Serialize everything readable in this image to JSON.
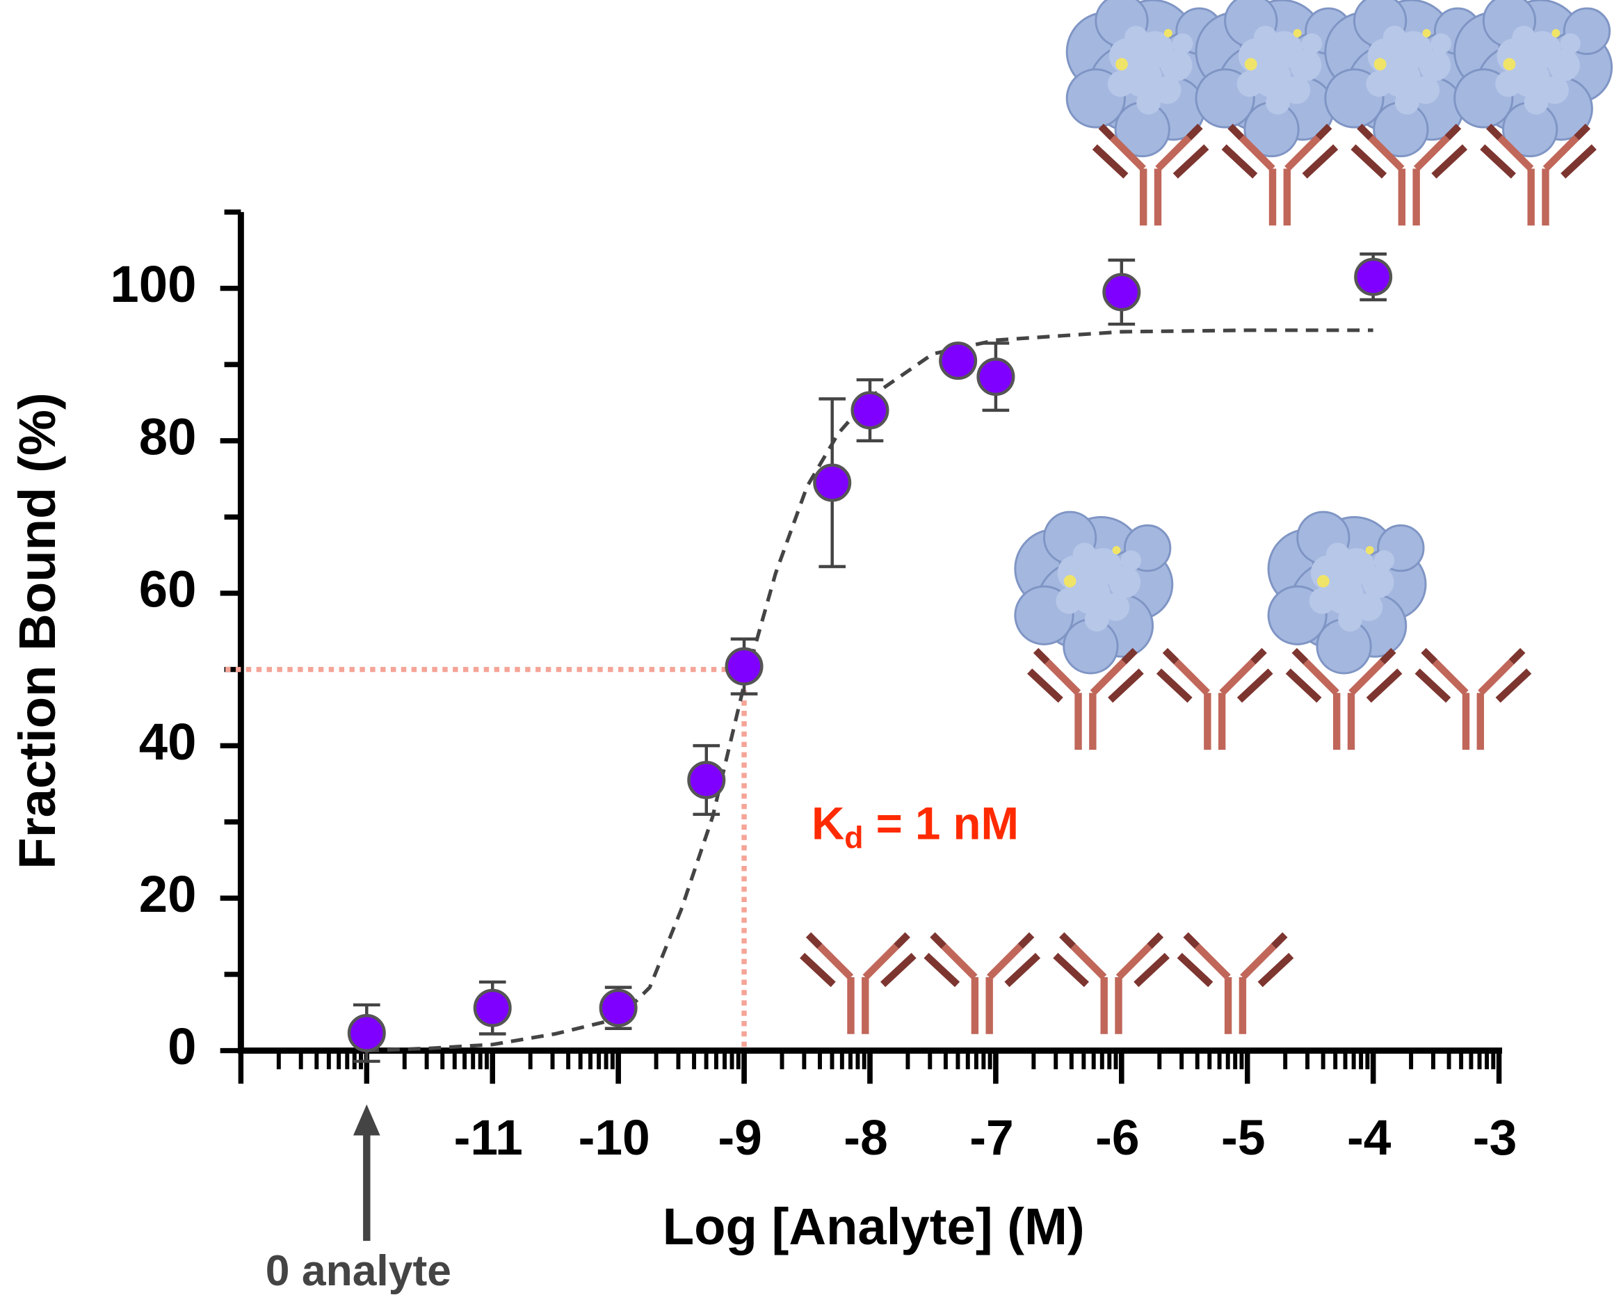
{
  "chart_data": {
    "type": "scatter",
    "xlabel": "Log [Analyte] (M)",
    "ylabel": "Fraction Bound (%)",
    "xlim": [
      -13,
      -3
    ],
    "ylim": [
      0,
      110
    ],
    "xticks": [
      -11,
      -10,
      -9,
      -8,
      -7,
      -6,
      -5,
      -4,
      -3
    ],
    "yticks": [
      0,
      20,
      40,
      60,
      80,
      100
    ],
    "series": [
      {
        "color": "#7f00ff",
        "x": [
          -12,
          -11,
          -10,
          -9.3,
          -9,
          -8.3,
          -8,
          -7.3,
          -7,
          -6,
          -4
        ],
        "values": [
          2.3,
          5.6,
          5.6,
          35.5,
          50.4,
          74.5,
          84,
          90.5,
          88.4,
          99.5,
          101.5
        ],
        "errors": [
          3.7,
          3.4,
          2.7,
          4.5,
          3.6,
          11,
          4,
          0,
          4.4,
          4.2,
          3
        ]
      }
    ],
    "fit": {
      "color": "#444444",
      "x": [
        -12,
        -11.5,
        -11,
        -10.5,
        -10,
        -9.75,
        -9.5,
        -9.25,
        -9,
        -8.75,
        -8.5,
        -8.25,
        -8,
        -7.5,
        -7,
        -6,
        -5,
        -4
      ],
      "y": [
        0,
        0.3,
        0.8,
        2.2,
        4.2,
        8.3,
        18.5,
        30.7,
        48,
        62.6,
        74,
        81,
        85.7,
        91.4,
        93.2,
        94.3,
        94.5,
        94.5
      ]
    },
    "annotations": {
      "kd": {
        "text_main": "K",
        "text_sub": "d",
        "text_rest": " = 1 nM",
        "x": -9,
        "y": 50,
        "color": "#ff2a00",
        "guide_color": "#f5a497"
      },
      "zero": {
        "text": "0 analyte",
        "x": -12
      }
    }
  }
}
